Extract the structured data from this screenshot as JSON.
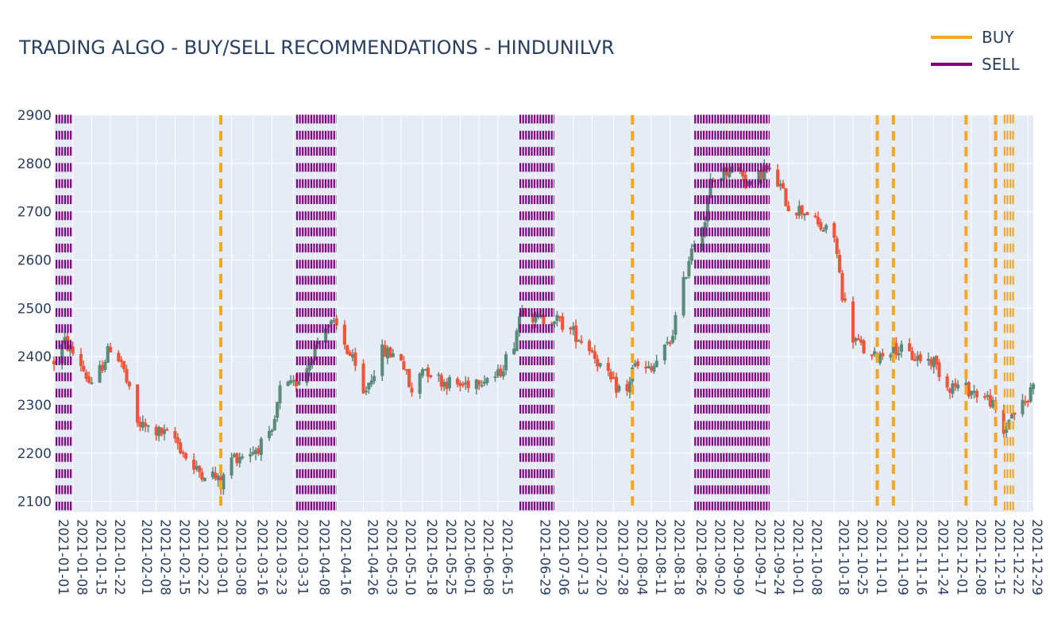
{
  "title": "TRADING ALGO - BUY/SELL RECOMMENDATIONS - HINDUNILVR",
  "legend": [
    {
      "label": "BUY",
      "color": "#f5a623"
    },
    {
      "label": "SELL",
      "color": "#800080"
    }
  ],
  "colors": {
    "plot_bg": "#e5ecf6",
    "grid": "#ffffff",
    "increasing": "#5b8a7a",
    "decreasing": "#ef553b",
    "buy": "#f5a623",
    "sell": "#800080"
  },
  "chart_data": {
    "type": "candlestick",
    "title": "TRADING ALGO - BUY/SELL RECOMMENDATIONS - HINDUNILVR",
    "xlabel": "",
    "ylabel": "",
    "xlim": [
      "2021-01-01",
      "2021-12-31"
    ],
    "ylim": [
      2078,
      2900
    ],
    "y_ticks": [
      2100,
      2200,
      2300,
      2400,
      2500,
      2600,
      2700,
      2800,
      2900
    ],
    "x_ticks": [
      "2021-01-01",
      "2021-01-08",
      "2021-01-15",
      "2021-01-22",
      "2021-02-01",
      "2021-02-08",
      "2021-02-15",
      "2021-02-22",
      "2021-03-01",
      "2021-03-08",
      "2021-03-16",
      "2021-03-23",
      "2021-03-31",
      "2021-04-08",
      "2021-04-16",
      "2021-04-26",
      "2021-05-03",
      "2021-05-10",
      "2021-05-18",
      "2021-05-25",
      "2021-06-01",
      "2021-06-08",
      "2021-06-15",
      "2021-06-29",
      "2021-07-06",
      "2021-07-13",
      "2021-07-20",
      "2021-07-28",
      "2021-08-04",
      "2021-08-11",
      "2021-08-18",
      "2021-08-26",
      "2021-09-02",
      "2021-09-09",
      "2021-09-17",
      "2021-09-24",
      "2021-10-01",
      "2021-10-08",
      "2021-10-18",
      "2021-10-25",
      "2021-11-01",
      "2021-11-09",
      "2021-11-16",
      "2021-11-24",
      "2021-12-01",
      "2021-12-08",
      "2021-12-15",
      "2021-12-22",
      "2021-12-29"
    ],
    "grid": true,
    "legend_position": "top-right",
    "price_path": [
      [
        "2021-01-01",
        2390
      ],
      [
        "2021-01-05",
        2430
      ],
      [
        "2021-01-11",
        2385
      ],
      [
        "2021-01-15",
        2335
      ],
      [
        "2021-01-22",
        2420
      ],
      [
        "2021-01-26",
        2390
      ],
      [
        "2021-02-01",
        2260
      ],
      [
        "2021-02-08",
        2245
      ],
      [
        "2021-02-15",
        2230
      ],
      [
        "2021-02-22",
        2165
      ],
      [
        "2021-03-01",
        2155
      ],
      [
        "2021-03-04",
        2135
      ],
      [
        "2021-03-08",
        2190
      ],
      [
        "2021-03-16",
        2205
      ],
      [
        "2021-03-23",
        2235
      ],
      [
        "2021-03-26",
        2330
      ],
      [
        "2021-03-31",
        2340
      ],
      [
        "2021-04-05",
        2380
      ],
      [
        "2021-04-08",
        2420
      ],
      [
        "2021-04-12",
        2470
      ],
      [
        "2021-04-16",
        2460
      ],
      [
        "2021-04-22",
        2390
      ],
      [
        "2021-04-26",
        2320
      ],
      [
        "2021-04-29",
        2360
      ],
      [
        "2021-05-03",
        2410
      ],
      [
        "2021-05-10",
        2400
      ],
      [
        "2021-05-14",
        2320
      ],
      [
        "2021-05-18",
        2380
      ],
      [
        "2021-05-25",
        2350
      ],
      [
        "2021-06-01",
        2340
      ],
      [
        "2021-06-08",
        2355
      ],
      [
        "2021-06-15",
        2360
      ],
      [
        "2021-06-21",
        2430
      ],
      [
        "2021-06-24",
        2510
      ],
      [
        "2021-06-29",
        2475
      ],
      [
        "2021-07-06",
        2480
      ],
      [
        "2021-07-13",
        2450
      ],
      [
        "2021-07-20",
        2415
      ],
      [
        "2021-07-23",
        2380
      ],
      [
        "2021-07-28",
        2340
      ],
      [
        "2021-08-02",
        2325
      ],
      [
        "2021-08-04",
        2380
      ],
      [
        "2021-08-11",
        2370
      ],
      [
        "2021-08-13",
        2390
      ],
      [
        "2021-08-18",
        2430
      ],
      [
        "2021-08-23",
        2550
      ],
      [
        "2021-08-26",
        2630
      ],
      [
        "2021-08-31",
        2680
      ],
      [
        "2021-09-02",
        2760
      ],
      [
        "2021-09-09",
        2790
      ],
      [
        "2021-09-14",
        2780
      ],
      [
        "2021-09-17",
        2750
      ],
      [
        "2021-09-22",
        2790
      ],
      [
        "2021-09-24",
        2780
      ],
      [
        "2021-09-28",
        2750
      ],
      [
        "2021-10-01",
        2710
      ],
      [
        "2021-10-08",
        2700
      ],
      [
        "2021-10-12",
        2670
      ],
      [
        "2021-10-18",
        2650
      ],
      [
        "2021-10-21",
        2530
      ],
      [
        "2021-10-25",
        2440
      ],
      [
        "2021-10-28",
        2420
      ],
      [
        "2021-11-01",
        2395
      ],
      [
        "2021-11-09",
        2420
      ],
      [
        "2021-11-16",
        2400
      ],
      [
        "2021-11-24",
        2390
      ],
      [
        "2021-11-29",
        2340
      ],
      [
        "2021-12-01",
        2340
      ],
      [
        "2021-12-08",
        2330
      ],
      [
        "2021-12-13",
        2315
      ],
      [
        "2021-12-15",
        2310
      ],
      [
        "2021-12-20",
        2240
      ],
      [
        "2021-12-22",
        2275
      ],
      [
        "2021-12-29",
        2310
      ],
      [
        "2021-12-31",
        2355
      ]
    ],
    "sell_periods": [
      [
        "2021-01-01",
        "2021-01-08"
      ],
      [
        "2021-04-01",
        "2021-04-16"
      ],
      [
        "2021-06-23",
        "2021-07-06"
      ],
      [
        "2021-08-27",
        "2021-09-24"
      ]
    ],
    "buy_dates": [
      "2021-03-04",
      "2021-08-04",
      "2021-11-03",
      "2021-11-09",
      "2021-12-06",
      "2021-12-17"
    ],
    "buy_periods": [
      [
        "2021-12-20",
        "2021-12-24"
      ]
    ]
  }
}
